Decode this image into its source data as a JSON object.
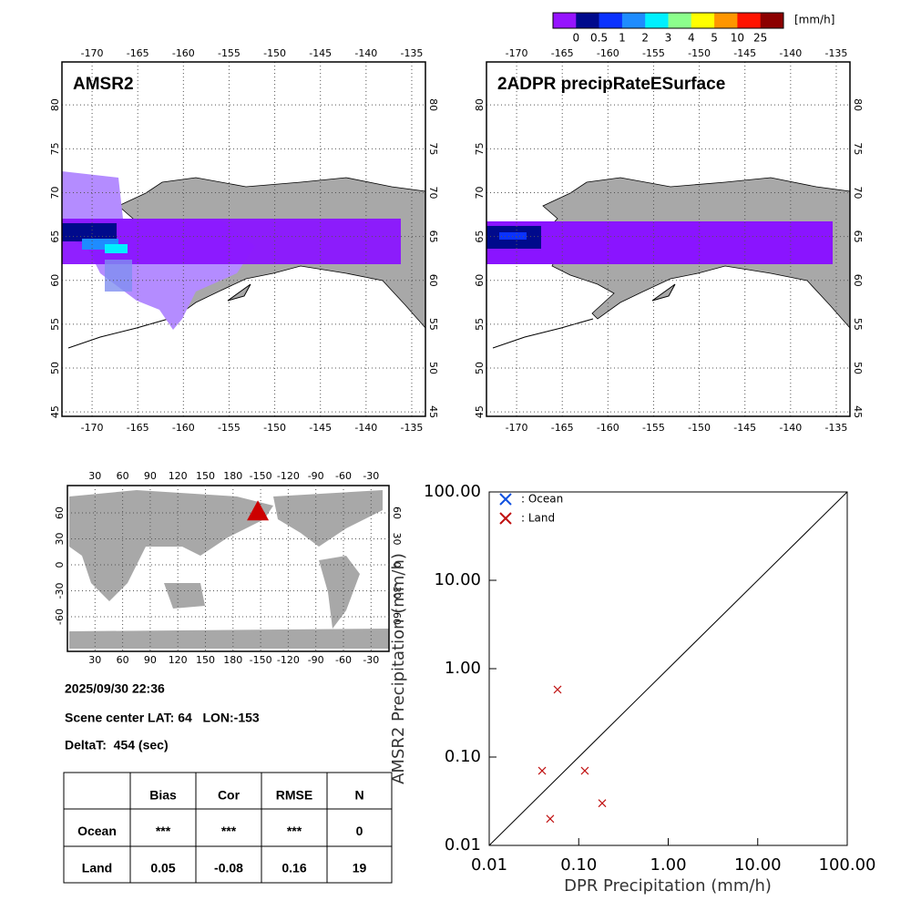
{
  "colorbar": {
    "colors": [
      "#9614ff",
      "#000a8c",
      "#0a32ff",
      "#1e8cff",
      "#00f0ff",
      "#8cff8c",
      "#ffff00",
      "#ff9600",
      "#ff1400",
      "#8c0000"
    ],
    "labels": [
      "0",
      "0.5",
      "1",
      "2",
      "3",
      "4",
      "5",
      "10",
      "25"
    ],
    "unit": "[mm/h]"
  },
  "maps": [
    {
      "title": "AMSR2",
      "xlim": [
        -173.3,
        -133.5
      ],
      "ylim": [
        44.5,
        84.9
      ],
      "xticks": [
        -170,
        -165,
        -160,
        -155,
        -150,
        -145,
        -140,
        -135
      ],
      "yticks": [
        45,
        50,
        55,
        60,
        65,
        70,
        75,
        80
      ]
    },
    {
      "title": "2ADPR precipRateESurface",
      "xlim": [
        -173.3,
        -133.5
      ],
      "ylim": [
        44.5,
        84.9
      ],
      "xticks": [
        -170,
        -165,
        -160,
        -155,
        -150,
        -145,
        -140,
        -135
      ],
      "yticks": [
        45,
        50,
        55,
        60,
        65,
        70,
        75,
        80
      ]
    }
  ],
  "globe": {
    "xticks": [
      30,
      60,
      90,
      120,
      150,
      180,
      -150,
      -120,
      -90,
      -60,
      -30
    ],
    "yticks": [
      60,
      30,
      0,
      -30,
      -60
    ],
    "marker": {
      "lat": 64,
      "lon": -153,
      "color": "#cc0000"
    }
  },
  "info": {
    "time": "2025/09/30 22:36",
    "center": "Scene center LAT: 64   LON:-153",
    "delta": "DeltaT:  454 (sec)"
  },
  "table": {
    "header": [
      "Bias",
      "Cor",
      "RMSE",
      "N"
    ],
    "rows": [
      [
        "Ocean",
        "***",
        "***",
        "***",
        "0"
      ],
      [
        "Land",
        "0.05",
        "-0.08",
        "0.16",
        "19"
      ]
    ]
  },
  "chart_data": {
    "type": "scatter",
    "log_scale": true,
    "xlabel": "DPR Precipitation (mm/h)",
    "ylabel": "AMSR2 Precipitation (mm/h)",
    "xlim": [
      0.01,
      100
    ],
    "ylim": [
      0.01,
      100
    ],
    "xticks": [
      {
        "value": 0.01,
        "label": "0.01"
      },
      {
        "value": 0.1,
        "label": "0.10"
      },
      {
        "value": 1,
        "label": "1.00"
      },
      {
        "value": 10,
        "label": "10.00"
      },
      {
        "value": 100,
        "label": "100.00"
      }
    ],
    "yticks": [
      {
        "value": 0.01,
        "label": "0.01"
      },
      {
        "value": 0.1,
        "label": "0.10"
      },
      {
        "value": 1,
        "label": "1.00"
      },
      {
        "value": 10,
        "label": "10.00"
      },
      {
        "value": 100,
        "label": "100.00"
      }
    ],
    "series": [
      {
        "name": ": Ocean",
        "color": "#1050e0",
        "x": [],
        "values": []
      },
      {
        "name": ": Land",
        "color": "#c01010",
        "x": [
          0.039,
          0.058,
          0.117,
          0.183,
          0.048
        ],
        "values": [
          0.07,
          0.58,
          0.07,
          0.03,
          0.02
        ]
      }
    ]
  }
}
